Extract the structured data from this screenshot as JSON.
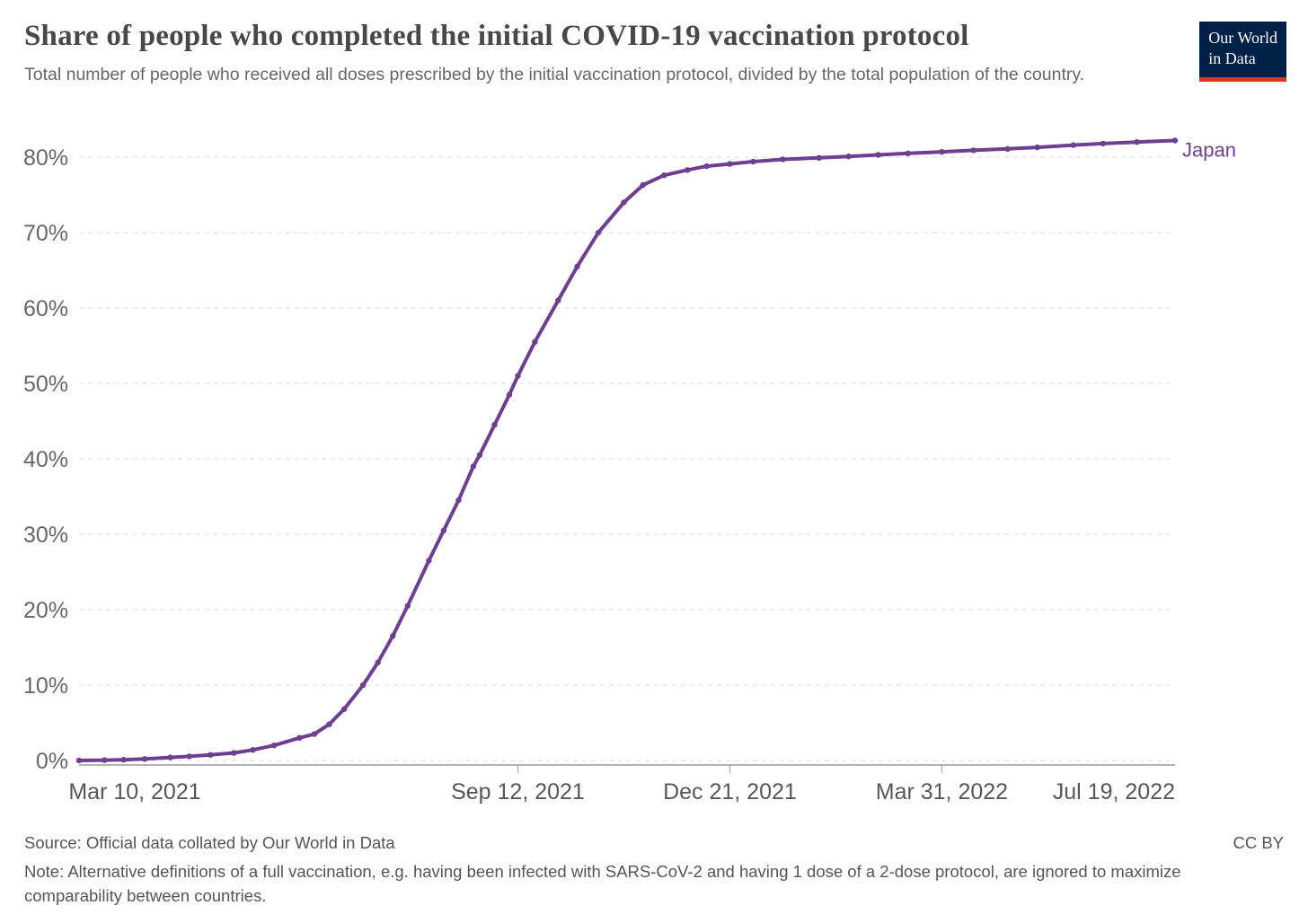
{
  "header": {
    "title": "Share of people who completed the initial COVID-19 vaccination protocol",
    "subtitle": "Total number of people who received all doses prescribed by the initial vaccination protocol, divided by the total population of the country.",
    "logo": {
      "line1": "Our World",
      "line2": "in Data",
      "bg_color": "#002147",
      "accent_color": "#d8351f"
    }
  },
  "chart_data": {
    "type": "line",
    "title": "Share of people who completed the initial COVID-19 vaccination protocol",
    "xlabel": "",
    "ylabel": "",
    "grid": "horizontal-dashed",
    "legend_position": "end-of-line-label",
    "ylim": [
      0,
      85
    ],
    "x_range": [
      "2021-02-17",
      "2022-07-19"
    ],
    "y_ticks": [
      {
        "v": 0,
        "label": "0%"
      },
      {
        "v": 10,
        "label": "10%"
      },
      {
        "v": 20,
        "label": "20%"
      },
      {
        "v": 30,
        "label": "30%"
      },
      {
        "v": 40,
        "label": "40%"
      },
      {
        "v": 50,
        "label": "50%"
      },
      {
        "v": 60,
        "label": "60%"
      },
      {
        "v": 70,
        "label": "70%"
      },
      {
        "v": 80,
        "label": "80%"
      }
    ],
    "x_ticks": [
      {
        "label": "Mar 10, 2021",
        "date": "2021-03-10",
        "tick_mark": false
      },
      {
        "label": "Sep 12, 2021",
        "date": "2021-09-12",
        "tick_mark": true
      },
      {
        "label": "Dec 21, 2021",
        "date": "2021-12-21",
        "tick_mark": true
      },
      {
        "label": "Mar 31, 2022",
        "date": "2022-03-31",
        "tick_mark": true
      },
      {
        "label": "Jul 19, 2022",
        "date": "2022-07-19",
        "tick_mark": false
      }
    ],
    "series": [
      {
        "name": "Japan",
        "color": "#6d3e91",
        "points": [
          [
            "2021-02-17",
            0.0
          ],
          [
            "2021-03-01",
            0.05
          ],
          [
            "2021-03-10",
            0.1
          ],
          [
            "2021-03-20",
            0.2
          ],
          [
            "2021-04-01",
            0.4
          ],
          [
            "2021-04-10",
            0.55
          ],
          [
            "2021-04-20",
            0.75
          ],
          [
            "2021-05-01",
            1.0
          ],
          [
            "2021-05-10",
            1.4
          ],
          [
            "2021-05-20",
            2.0
          ],
          [
            "2021-06-01",
            3.0
          ],
          [
            "2021-06-08",
            3.5
          ],
          [
            "2021-06-15",
            4.8
          ],
          [
            "2021-06-22",
            6.8
          ],
          [
            "2021-07-01",
            10.0
          ],
          [
            "2021-07-08",
            13.0
          ],
          [
            "2021-07-15",
            16.5
          ],
          [
            "2021-07-22",
            20.5
          ],
          [
            "2021-08-01",
            26.5
          ],
          [
            "2021-08-08",
            30.5
          ],
          [
            "2021-08-15",
            34.5
          ],
          [
            "2021-08-22",
            39.0
          ],
          [
            "2021-08-25",
            40.5
          ],
          [
            "2021-09-01",
            44.5
          ],
          [
            "2021-09-08",
            48.5
          ],
          [
            "2021-09-12",
            51.0
          ],
          [
            "2021-09-20",
            55.5
          ],
          [
            "2021-10-01",
            61.0
          ],
          [
            "2021-10-10",
            65.5
          ],
          [
            "2021-10-20",
            70.0
          ],
          [
            "2021-11-01",
            74.0
          ],
          [
            "2021-11-10",
            76.3
          ],
          [
            "2021-11-20",
            77.6
          ],
          [
            "2021-12-01",
            78.3
          ],
          [
            "2021-12-10",
            78.8
          ],
          [
            "2021-12-21",
            79.1
          ],
          [
            "2022-01-01",
            79.4
          ],
          [
            "2022-01-15",
            79.7
          ],
          [
            "2022-02-01",
            79.9
          ],
          [
            "2022-02-15",
            80.1
          ],
          [
            "2022-03-01",
            80.3
          ],
          [
            "2022-03-15",
            80.5
          ],
          [
            "2022-03-31",
            80.7
          ],
          [
            "2022-04-15",
            80.9
          ],
          [
            "2022-05-01",
            81.1
          ],
          [
            "2022-05-15",
            81.3
          ],
          [
            "2022-06-01",
            81.6
          ],
          [
            "2022-06-15",
            81.8
          ],
          [
            "2022-07-01",
            82.0
          ],
          [
            "2022-07-19",
            82.2
          ]
        ]
      }
    ]
  },
  "footer": {
    "source": "Source: Official data collated by Our World in Data",
    "note": "Note: Alternative definitions of a full vaccination, e.g. having been infected with SARS-CoV-2 and having 1 dose of a 2-dose protocol, are ignored to maximize comparability between countries.",
    "license": "CC BY"
  }
}
